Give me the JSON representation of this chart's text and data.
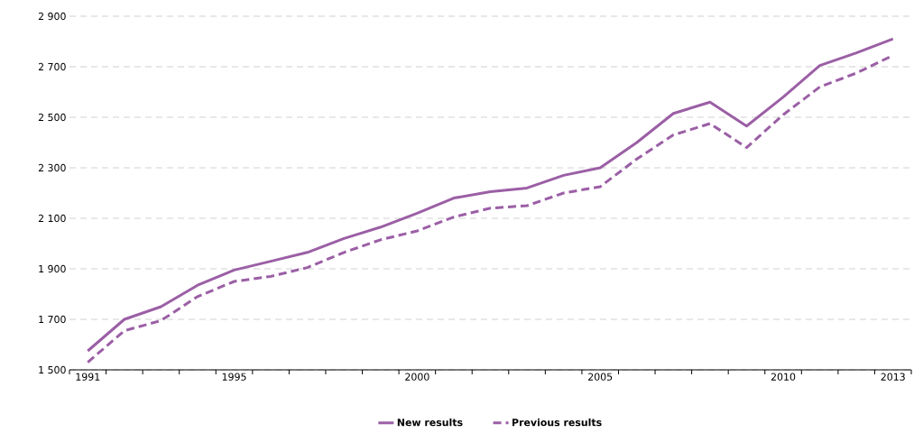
{
  "chart_data": {
    "type": "line",
    "categories": [
      "1991",
      null,
      null,
      null,
      "1995",
      null,
      null,
      null,
      null,
      "2000",
      null,
      null,
      null,
      null,
      "2005",
      null,
      null,
      null,
      null,
      "2010",
      null,
      null,
      "2013"
    ],
    "series": [
      {
        "name": "New results",
        "color": "#9b5fa5",
        "line_style": "solid",
        "values": [
          1575,
          1700,
          1750,
          1835,
          1895,
          1930,
          1965,
          2020,
          2065,
          2120,
          2180,
          2205,
          2220,
          2270,
          2300,
          2400,
          2515,
          2560,
          2465,
          2580,
          2705,
          2755,
          2810
        ]
      },
      {
        "name": "Previous results",
        "color": "#9b5fa5",
        "line_style": "dashed",
        "values": [
          1530,
          1655,
          1695,
          1790,
          1850,
          1870,
          1905,
          1965,
          2015,
          2050,
          2105,
          2140,
          2150,
          2200,
          2225,
          2335,
          2430,
          2475,
          2380,
          2510,
          2620,
          2675,
          2745
        ]
      }
    ],
    "ylim": [
      1500,
      2900
    ],
    "yticks": [
      {
        "value": 1500,
        "label": "1 500"
      },
      {
        "value": 1700,
        "label": "1 700"
      },
      {
        "value": 1900,
        "label": "1 900"
      },
      {
        "value": 2100,
        "label": "2 100"
      },
      {
        "value": 2300,
        "label": "2 300"
      },
      {
        "value": 2500,
        "label": "2 500"
      },
      {
        "value": 2700,
        "label": "2 700"
      },
      {
        "value": 2900,
        "label": "2 900"
      }
    ],
    "grid": "y",
    "legend": "bottom",
    "marker": "none"
  }
}
